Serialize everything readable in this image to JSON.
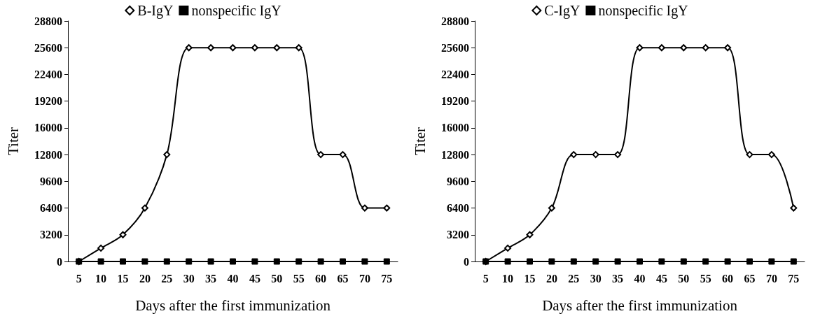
{
  "chart_data": [
    {
      "type": "line",
      "xlabel": "Days after the first immunization",
      "ylabel": "Titer",
      "categories": [
        "5",
        "10",
        "15",
        "20",
        "25",
        "30",
        "35",
        "40",
        "45",
        "50",
        "55",
        "60",
        "65",
        "70",
        "75"
      ],
      "series": [
        {
          "name": "B-IgY",
          "color": "#000000",
          "marker": "diamond",
          "values": [
            0,
            1600,
            3200,
            6400,
            12800,
            25600,
            25600,
            25600,
            25600,
            25600,
            25600,
            12800,
            12800,
            6400,
            6400
          ]
        },
        {
          "name": "nonspecific IgY",
          "color": "#000000",
          "marker": "square",
          "values": [
            0,
            0,
            0,
            0,
            0,
            0,
            0,
            0,
            0,
            0,
            0,
            0,
            0,
            0,
            0
          ]
        }
      ],
      "ylim": [
        0,
        28800
      ],
      "yticks": [
        0,
        3200,
        6400,
        9600,
        12800,
        16000,
        19200,
        22400,
        25600,
        28800
      ],
      "grid": false,
      "legend": "top"
    },
    {
      "type": "line",
      "xlabel": "Days after the first immunization",
      "ylabel": "Titer",
      "categories": [
        "5",
        "10",
        "15",
        "20",
        "25",
        "30",
        "35",
        "40",
        "45",
        "50",
        "55",
        "60",
        "65",
        "70",
        "75"
      ],
      "series": [
        {
          "name": "C-IgY",
          "color": "#000000",
          "marker": "diamond",
          "values": [
            0,
            1600,
            3200,
            6400,
            12800,
            12800,
            12800,
            25600,
            25600,
            25600,
            25600,
            25600,
            12800,
            12800,
            6400
          ]
        },
        {
          "name": "nonspecific IgY",
          "color": "#000000",
          "marker": "square",
          "values": [
            0,
            0,
            0,
            0,
            0,
            0,
            0,
            0,
            0,
            0,
            0,
            0,
            0,
            0,
            0
          ]
        }
      ],
      "ylim": [
        0,
        28800
      ],
      "yticks": [
        0,
        3200,
        6400,
        9600,
        12800,
        16000,
        19200,
        22400,
        25600,
        28800
      ],
      "grid": false,
      "legend": "top"
    }
  ]
}
